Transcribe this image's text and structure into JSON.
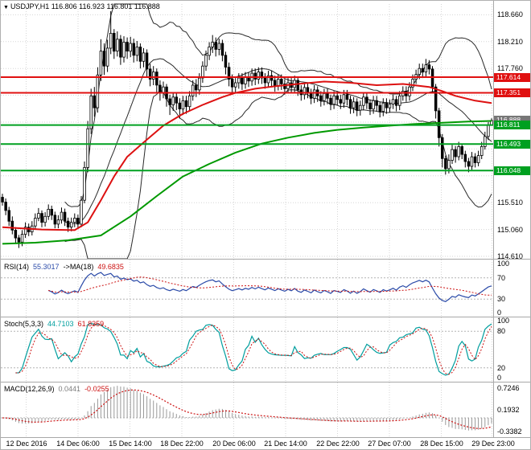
{
  "window": {
    "marker_glyph": "▼"
  },
  "colors": {
    "grid": "#d6d6d6",
    "candle": "#000000",
    "bollinger": "#2a2a2a",
    "resistance": "#e01010",
    "support": "#00a020",
    "level": "#b4b4b4",
    "current_price_box": "#777777"
  },
  "chart_data": [
    {
      "type": "candlestick",
      "panel": "main",
      "symbol_label": "USDJPY,H1 116.806 116.923 116.801 116.888",
      "quote": {
        "open": 116.806,
        "high": 116.923,
        "low": 116.801,
        "close": 116.888
      },
      "ylim": [
        114.57,
        118.84
      ],
      "y_ticks": [
        118.66,
        118.21,
        117.76,
        115.51,
        115.06,
        114.61
      ],
      "grid_prices": [
        118.66,
        118.21,
        117.76,
        117.31,
        116.86,
        116.41,
        115.96,
        115.51,
        115.06,
        114.61
      ],
      "resistance_lines": [
        117.614,
        117.351
      ],
      "support_lines": [
        116.811,
        116.493,
        116.048
      ],
      "current_price": 116.888,
      "x_labels": [
        "12 Dec 2016",
        "14 Dec 06:00",
        "15 Dec 14:00",
        "18 Dec 22:00",
        "20 Dec 06:00",
        "21 Dec 14:00",
        "22 Dec 22:00",
        "27 Dec 07:00",
        "28 Dec 15:00",
        "29 Dec 23:00"
      ],
      "first_open": 115.6,
      "candles_hlc": [
        [
          115.66,
          115.46,
          115.52
        ],
        [
          115.58,
          115.3,
          115.38
        ],
        [
          115.44,
          115.12,
          115.2
        ],
        [
          115.28,
          114.98,
          115.05
        ],
        [
          115.1,
          114.82,
          114.92
        ],
        [
          114.97,
          114.75,
          114.85
        ],
        [
          115.05,
          114.78,
          114.98
        ],
        [
          115.18,
          114.92,
          115.1
        ],
        [
          115.16,
          114.95,
          115.02
        ],
        [
          115.2,
          114.96,
          115.12
        ],
        [
          115.33,
          115.06,
          115.25
        ],
        [
          115.42,
          115.2,
          115.33
        ],
        [
          115.38,
          115.1,
          115.18
        ],
        [
          115.35,
          115.11,
          115.28
        ],
        [
          115.48,
          115.22,
          115.4
        ],
        [
          115.46,
          115.22,
          115.3
        ],
        [
          115.36,
          115.08,
          115.15
        ],
        [
          115.3,
          115.08,
          115.22
        ],
        [
          115.43,
          115.16,
          115.35
        ],
        [
          115.41,
          115.12,
          115.2
        ],
        [
          115.26,
          115.02,
          115.1
        ],
        [
          115.26,
          115.03,
          115.18
        ],
        [
          115.33,
          115.1,
          115.25
        ],
        [
          115.31,
          115.07,
          115.15
        ],
        [
          115.62,
          115.1,
          115.55
        ],
        [
          116.2,
          115.5,
          116.1
        ],
        [
          116.88,
          116.02,
          116.75
        ],
        [
          117.42,
          116.66,
          117.3
        ],
        [
          117.45,
          116.95,
          117.1
        ],
        [
          117.78,
          117.02,
          117.65
        ],
        [
          118.25,
          117.55,
          118.05
        ],
        [
          118.18,
          117.65,
          117.8
        ],
        [
          118.24,
          117.7,
          118.1
        ],
        [
          118.72,
          118.0,
          118.35
        ],
        [
          118.42,
          117.92,
          118.05
        ],
        [
          118.38,
          117.96,
          118.25
        ],
        [
          118.32,
          117.82,
          117.95
        ],
        [
          118.3,
          117.86,
          118.2
        ],
        [
          118.28,
          117.92,
          118.05
        ],
        [
          118.29,
          117.95,
          118.18
        ],
        [
          118.26,
          117.86,
          117.98
        ],
        [
          118.22,
          117.88,
          118.12
        ],
        [
          118.18,
          117.76,
          117.88
        ],
        [
          118.1,
          117.78,
          118.02
        ],
        [
          118.08,
          117.62,
          117.75
        ],
        [
          117.84,
          117.46,
          117.58
        ],
        [
          117.8,
          117.48,
          117.7
        ],
        [
          117.76,
          117.36,
          117.48
        ],
        [
          117.56,
          117.22,
          117.35
        ],
        [
          117.54,
          117.26,
          117.45
        ],
        [
          117.5,
          117.12,
          117.25
        ],
        [
          117.32,
          116.98,
          117.15
        ],
        [
          117.36,
          117.05,
          117.28
        ],
        [
          117.36,
          117.06,
          117.18
        ],
        [
          117.26,
          116.92,
          117.08
        ],
        [
          117.3,
          116.98,
          117.22
        ],
        [
          117.3,
          117.0,
          117.12
        ],
        [
          117.38,
          117.04,
          117.3
        ],
        [
          117.56,
          117.22,
          117.48
        ],
        [
          117.58,
          117.28,
          117.4
        ],
        [
          117.68,
          117.32,
          117.6
        ],
        [
          117.88,
          117.52,
          117.8
        ],
        [
          118.06,
          117.72,
          117.98
        ],
        [
          118.2,
          117.9,
          118.12
        ],
        [
          118.32,
          118.02,
          118.2
        ],
        [
          118.28,
          117.96,
          118.08
        ],
        [
          118.26,
          117.98,
          118.18
        ],
        [
          118.24,
          117.88,
          117.98
        ],
        [
          118.04,
          117.66,
          117.78
        ],
        [
          117.86,
          117.46,
          117.58
        ],
        [
          117.66,
          117.32,
          117.45
        ],
        [
          117.6,
          117.34,
          117.52
        ],
        [
          117.68,
          117.42,
          117.6
        ],
        [
          117.68,
          117.4,
          117.5
        ],
        [
          117.7,
          117.42,
          117.62
        ],
        [
          117.7,
          117.45,
          117.55
        ],
        [
          117.76,
          117.47,
          117.68
        ],
        [
          117.76,
          117.48,
          117.58
        ],
        [
          117.78,
          117.5,
          117.7
        ],
        [
          117.78,
          117.5,
          117.6
        ],
        [
          117.68,
          117.42,
          117.52
        ],
        [
          117.72,
          117.44,
          117.64
        ],
        [
          117.72,
          117.46,
          117.56
        ],
        [
          117.64,
          117.37,
          117.47
        ],
        [
          117.66,
          117.39,
          117.58
        ],
        [
          117.66,
          117.4,
          117.5
        ],
        [
          117.58,
          117.32,
          117.42
        ],
        [
          117.6,
          117.34,
          117.52
        ],
        [
          117.6,
          117.34,
          117.44
        ],
        [
          117.64,
          117.36,
          117.56
        ],
        [
          117.62,
          117.3,
          117.4
        ],
        [
          117.48,
          117.22,
          117.32
        ],
        [
          117.52,
          117.24,
          117.44
        ],
        [
          117.52,
          117.26,
          117.36
        ],
        [
          117.42,
          117.16,
          117.26
        ],
        [
          117.48,
          117.18,
          117.4
        ],
        [
          117.46,
          117.2,
          117.3
        ],
        [
          117.38,
          117.12,
          117.22
        ],
        [
          117.42,
          117.14,
          117.34
        ],
        [
          117.42,
          117.16,
          117.26
        ],
        [
          117.32,
          117.06,
          117.16
        ],
        [
          117.38,
          117.08,
          117.3
        ],
        [
          117.38,
          117.14,
          117.24
        ],
        [
          117.32,
          117.08,
          117.18
        ],
        [
          117.4,
          117.1,
          117.32
        ],
        [
          117.4,
          117.14,
          117.24
        ],
        [
          117.3,
          117.0,
          117.1
        ],
        [
          117.28,
          117.01,
          117.2
        ],
        [
          117.26,
          116.96,
          117.06
        ],
        [
          117.22,
          116.97,
          117.14
        ],
        [
          117.36,
          117.06,
          117.28
        ],
        [
          117.34,
          117.08,
          117.18
        ],
        [
          117.24,
          116.98,
          117.08
        ],
        [
          117.3,
          117.0,
          117.22
        ],
        [
          117.3,
          117.04,
          117.14
        ],
        [
          117.2,
          116.94,
          117.04
        ],
        [
          117.26,
          116.96,
          117.18
        ],
        [
          117.26,
          117.0,
          117.1
        ],
        [
          117.24,
          117.02,
          117.16
        ],
        [
          117.32,
          117.08,
          117.24
        ],
        [
          117.3,
          117.04,
          117.14
        ],
        [
          117.38,
          117.06,
          117.3
        ],
        [
          117.46,
          117.22,
          117.38
        ],
        [
          117.46,
          117.2,
          117.3
        ],
        [
          117.53,
          117.22,
          117.45
        ],
        [
          117.66,
          117.38,
          117.58
        ],
        [
          117.74,
          117.5,
          117.66
        ],
        [
          117.84,
          117.58,
          117.76
        ],
        [
          117.84,
          117.6,
          117.7
        ],
        [
          117.92,
          117.62,
          117.82
        ],
        [
          117.9,
          117.66,
          117.75
        ],
        [
          117.8,
          117.34,
          117.45
        ],
        [
          117.5,
          116.92,
          117.05
        ],
        [
          117.1,
          116.45,
          116.6
        ],
        [
          116.66,
          116.1,
          116.25
        ],
        [
          116.3,
          115.98,
          116.08
        ],
        [
          116.32,
          116.0,
          116.22
        ],
        [
          116.48,
          116.16,
          116.4
        ],
        [
          116.46,
          116.18,
          116.28
        ],
        [
          116.53,
          116.22,
          116.45
        ],
        [
          116.5,
          116.24,
          116.32
        ],
        [
          116.38,
          116.1,
          116.2
        ],
        [
          116.26,
          116.02,
          116.12
        ],
        [
          116.36,
          116.06,
          116.28
        ],
        [
          116.34,
          116.1,
          116.18
        ],
        [
          116.38,
          116.12,
          116.3
        ],
        [
          116.53,
          116.24,
          116.45
        ],
        [
          116.7,
          116.4,
          116.62
        ],
        [
          116.86,
          116.56,
          116.806
        ],
        [
          116.923,
          116.801,
          116.888
        ]
      ],
      "overlays": {
        "bollinger": {
          "period": 20,
          "deviation": 2
        },
        "ma_red": {
          "color": "#dd1111",
          "points": [
            [
              0,
              115.1
            ],
            [
              12,
              115.06
            ],
            [
              22,
              115.05
            ],
            [
              26,
              115.18
            ],
            [
              30,
              115.55
            ],
            [
              34,
              115.95
            ],
            [
              38,
              116.28
            ],
            [
              43,
              116.52
            ],
            [
              49,
              116.8
            ],
            [
              55,
              117.0
            ],
            [
              61,
              117.15
            ],
            [
              67,
              117.28
            ],
            [
              71,
              117.35
            ],
            [
              77,
              117.42
            ],
            [
              83,
              117.46
            ],
            [
              90,
              117.5
            ],
            [
              98,
              117.54
            ],
            [
              106,
              117.52
            ],
            [
              114,
              117.48
            ],
            [
              122,
              117.5
            ],
            [
              130,
              117.45
            ],
            [
              134,
              117.38
            ],
            [
              138,
              117.3
            ],
            [
              144,
              117.22
            ],
            [
              149,
              117.18
            ]
          ]
        },
        "ma_green": {
          "color": "#009900",
          "points": [
            [
              0,
              114.82
            ],
            [
              10,
              114.84
            ],
            [
              20,
              114.88
            ],
            [
              30,
              114.96
            ],
            [
              39,
              115.28
            ],
            [
              47,
              115.62
            ],
            [
              55,
              115.95
            ],
            [
              63,
              116.16
            ],
            [
              71,
              116.35
            ],
            [
              79,
              116.5
            ],
            [
              87,
              116.6
            ],
            [
              95,
              116.68
            ],
            [
              102,
              116.73
            ],
            [
              110,
              116.77
            ],
            [
              118,
              116.8
            ],
            [
              126,
              116.83
            ],
            [
              134,
              116.85
            ],
            [
              142,
              116.87
            ],
            [
              149,
              116.88
            ]
          ]
        }
      }
    },
    {
      "type": "line",
      "panel": "rsi",
      "name": "RSI(14)",
      "value": "55.3017",
      "ma_name": "->MA(18)",
      "ma_value": "49.6835",
      "period": 14,
      "ma_period": 18,
      "levels": [
        70,
        30
      ],
      "y_ticks": [
        100,
        70,
        30,
        0
      ],
      "ylim": [
        0,
        100
      ],
      "colors": {
        "main": "#2a4aa8",
        "signal": "#cc1111"
      }
    },
    {
      "type": "line",
      "panel": "stochastic",
      "name": "Stoch(5,3,3)",
      "value": "44.7103",
      "signal_value": "61.8359",
      "k_period": 5,
      "d_period": 3,
      "slowing": 3,
      "levels": [
        80,
        20
      ],
      "y_ticks": [
        100,
        80,
        20,
        0
      ],
      "ylim": [
        0,
        100
      ],
      "colors": {
        "main": "#009e9e",
        "signal": "#cc1111"
      }
    },
    {
      "type": "macd",
      "panel": "macd",
      "name": "MACD(12,26,9)",
      "value": "0.0441",
      "signal_value": "-0.0255",
      "fast": 12,
      "slow": 26,
      "signal": 9,
      "y_ticks": [
        0.7246,
        0.1932,
        -0.3382
      ],
      "ylim": [
        -0.45,
        0.82
      ],
      "colors": {
        "hist": "#999999",
        "signal": "#cc1111"
      }
    }
  ]
}
